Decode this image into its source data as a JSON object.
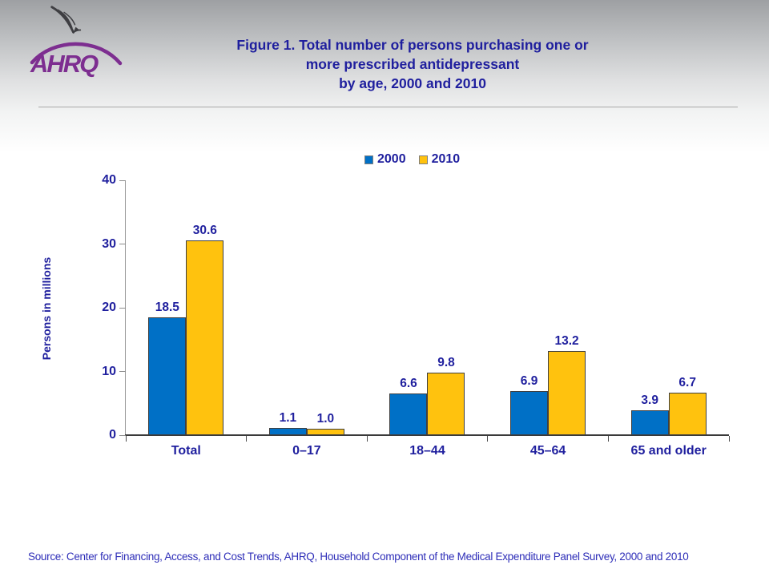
{
  "header": {
    "logo": {
      "org_text": "AHRQ",
      "eagle_icon": "hhs-eagle-icon",
      "logo_purple": "#7d2e90"
    },
    "title": "Figure 1. Total number of persons purchasing one or\nmore prescribed antidepressant\nby age, 2000 and 2010"
  },
  "chart_data": {
    "type": "bar",
    "title": "Figure 1. Total number of persons purchasing one or more prescribed antidepressant by age, 2000 and 2010",
    "categories": [
      "Total",
      "0–17",
      "18–44",
      "45–64",
      "65 and older"
    ],
    "series": [
      {
        "name": "2000",
        "color": "#0070c6",
        "values": [
          18.5,
          1.1,
          6.6,
          6.9,
          3.9
        ]
      },
      {
        "name": "2010",
        "color": "#ffc20e",
        "values": [
          30.6,
          1.0,
          9.8,
          13.2,
          6.7
        ]
      }
    ],
    "xlabel": "",
    "ylabel": "Persons in millions",
    "ylim": [
      0,
      40
    ],
    "y_ticks": [
      0,
      10,
      20,
      30,
      40
    ],
    "grid": false,
    "legend_position": "top",
    "value_labels": true,
    "value_label_format": "one-decimal"
  },
  "colors": {
    "title_navy": "#1f1f9e",
    "bar_2000_blue": "#0070c6",
    "bar_2010_yellow": "#ffc20e",
    "source_blue": "#2e2eb8",
    "logo_purple": "#7d2e90"
  },
  "footer": {
    "source": "Source: Center for Financing, Access, and Cost Trends, AHRQ, Household Component of the Medical Expenditure Panel Survey,  2000 and 2010"
  }
}
